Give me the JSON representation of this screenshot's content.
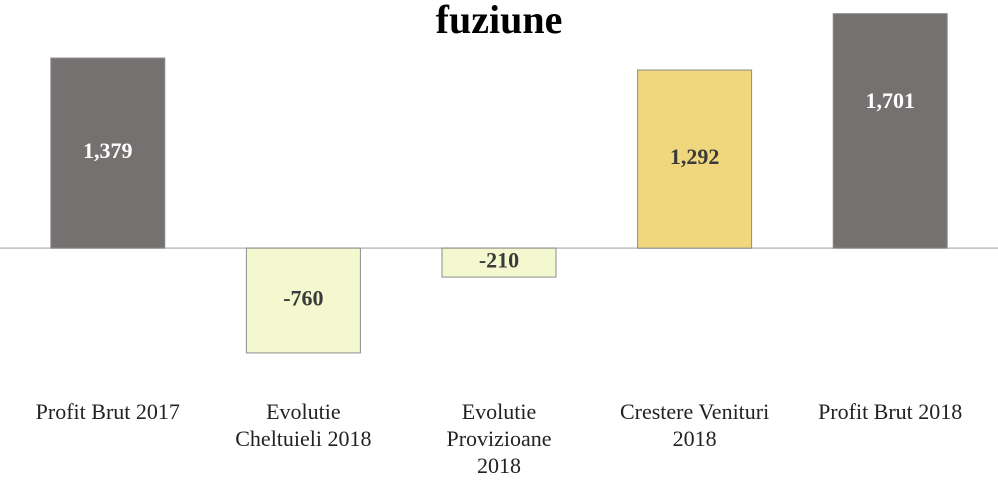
{
  "chart_data": {
    "type": "bar",
    "title": "fuziune",
    "categories": [
      "Profit Brut 2017",
      "Evolutie Cheltuieli 2018",
      "Evolutie Provizioane 2018",
      "Crestere Venituri 2018",
      "Profit Brut 2018"
    ],
    "values": [
      1379,
      -760,
      -210,
      1292,
      1701
    ],
    "value_labels": [
      "1,379",
      "-760",
      "-210",
      "1,292",
      "1,701"
    ],
    "colors": [
      "#767171",
      "#f4f8cf",
      "#f4f8cf",
      "#f0d67c",
      "#767171"
    ],
    "ylim": [
      -1000,
      1800
    ]
  }
}
